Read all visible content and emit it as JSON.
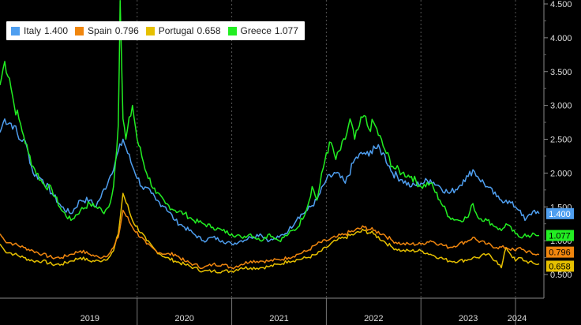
{
  "chart_data": {
    "type": "line",
    "xlabel": "",
    "ylabel": "",
    "x_ticks": [
      "2019",
      "2020",
      "2021",
      "2022",
      "2023",
      "2024"
    ],
    "ylim": [
      0.2,
      4.6
    ],
    "y_ticks": [
      "0.500",
      "1.000",
      "1.500",
      "2.000",
      "2.500",
      "3.000",
      "3.500",
      "4.000",
      "4.500"
    ],
    "y_tick_values": [
      0.5,
      1.0,
      1.5,
      2.0,
      2.5,
      3.0,
      3.5,
      4.0,
      4.5
    ],
    "grid": "vertical dashed",
    "legend": "top-left",
    "series": [
      {
        "name": "Italy",
        "last_label": "1.400",
        "color": "#4f9ff0",
        "x": [
          2018.55,
          2018.6,
          2018.7,
          2018.75,
          2018.8,
          2018.85,
          2018.9,
          2019.0,
          2019.1,
          2019.2,
          2019.3,
          2019.4,
          2019.5,
          2019.55,
          2019.6,
          2019.7,
          2019.85,
          2019.95,
          2020.05,
          2020.15,
          2020.2,
          2020.3,
          2020.4,
          2020.5,
          2020.6,
          2020.7,
          2020.8,
          2020.9,
          2021.0,
          2021.1,
          2021.2,
          2021.3,
          2021.4,
          2021.5,
          2021.6,
          2021.7,
          2021.8,
          2021.9,
          2022.0,
          2022.1,
          2022.2,
          2022.3,
          2022.4,
          2022.45,
          2022.5,
          2022.6,
          2022.7,
          2022.8,
          2022.9,
          2023.0,
          2023.1,
          2023.2,
          2023.3,
          2023.4,
          2023.45,
          2023.5,
          2023.55,
          2023.6,
          2023.7,
          2023.8,
          2023.85,
          2023.9,
          2024.0,
          2024.05,
          2024.1,
          2024.2,
          2024.25
        ],
        "y": [
          2.6,
          2.8,
          2.7,
          2.5,
          2.5,
          2.3,
          2.0,
          1.9,
          1.7,
          1.5,
          1.4,
          1.6,
          1.6,
          1.5,
          1.6,
          1.9,
          2.5,
          2.1,
          1.8,
          1.7,
          1.6,
          1.5,
          1.3,
          1.2,
          1.1,
          1.0,
          1.05,
          1.0,
          0.95,
          1.0,
          1.05,
          1.1,
          1.0,
          1.05,
          1.15,
          1.35,
          1.45,
          1.6,
          1.9,
          2.0,
          1.85,
          2.2,
          2.3,
          2.25,
          2.4,
          2.3,
          2.0,
          1.9,
          1.8,
          1.85,
          1.9,
          1.8,
          1.7,
          1.8,
          1.9,
          1.95,
          2.05,
          1.95,
          1.8,
          1.65,
          1.6,
          1.6,
          1.5,
          1.45,
          1.3,
          1.45,
          1.4
        ]
      },
      {
        "name": "Spain",
        "last_label": "0.796",
        "color": "#f0860e",
        "x": [
          2018.55,
          2018.6,
          2018.7,
          2018.8,
          2018.9,
          2019.0,
          2019.1,
          2019.2,
          2019.3,
          2019.4,
          2019.5,
          2019.6,
          2019.7,
          2019.75,
          2019.8,
          2019.85,
          2019.95,
          2020.1,
          2020.2,
          2020.3,
          2020.4,
          2020.5,
          2020.6,
          2020.7,
          2020.8,
          2020.9,
          2021.0,
          2021.1,
          2021.2,
          2021.3,
          2021.4,
          2021.5,
          2021.6,
          2021.7,
          2021.8,
          2021.9,
          2022.0,
          2022.1,
          2022.2,
          2022.3,
          2022.4,
          2022.5,
          2022.6,
          2022.7,
          2022.8,
          2022.9,
          2023.0,
          2023.1,
          2023.2,
          2023.3,
          2023.4,
          2023.5,
          2023.55,
          2023.6,
          2023.7,
          2023.8,
          2023.9,
          2024.0,
          2024.05,
          2024.1,
          2024.2,
          2024.25
        ],
        "y": [
          1.1,
          1.0,
          0.95,
          0.9,
          0.85,
          0.8,
          0.75,
          0.75,
          0.8,
          0.85,
          0.8,
          0.75,
          0.8,
          0.9,
          1.05,
          1.45,
          1.2,
          0.95,
          0.85,
          0.8,
          0.8,
          0.7,
          0.65,
          0.6,
          0.65,
          0.65,
          0.6,
          0.65,
          0.7,
          0.7,
          0.7,
          0.72,
          0.75,
          0.8,
          0.85,
          0.95,
          1.0,
          1.05,
          1.1,
          1.15,
          1.2,
          1.15,
          1.1,
          1.0,
          0.95,
          0.95,
          0.95,
          1.0,
          0.95,
          0.9,
          0.95,
          1.0,
          1.05,
          1.0,
          0.95,
          0.9,
          0.9,
          0.85,
          0.9,
          0.85,
          0.8,
          0.796
        ]
      },
      {
        "name": "Portugal",
        "last_label": "0.658",
        "color": "#e6c000",
        "x": [
          2018.55,
          2018.6,
          2018.7,
          2018.8,
          2018.9,
          2019.0,
          2019.1,
          2019.2,
          2019.3,
          2019.4,
          2019.5,
          2019.6,
          2019.7,
          2019.75,
          2019.8,
          2019.85,
          2019.95,
          2020.1,
          2020.2,
          2020.3,
          2020.4,
          2020.5,
          2020.6,
          2020.7,
          2020.8,
          2020.9,
          2021.0,
          2021.1,
          2021.2,
          2021.3,
          2021.4,
          2021.5,
          2021.6,
          2021.7,
          2021.8,
          2021.9,
          2022.0,
          2022.1,
          2022.2,
          2022.3,
          2022.4,
          2022.5,
          2022.6,
          2022.7,
          2022.8,
          2022.9,
          2023.0,
          2023.1,
          2023.2,
          2023.3,
          2023.4,
          2023.5,
          2023.55,
          2023.6,
          2023.7,
          2023.8,
          2023.85,
          2023.9,
          2024.0,
          2024.05,
          2024.1,
          2024.2,
          2024.25
        ],
        "y": [
          0.95,
          0.85,
          0.8,
          0.75,
          0.7,
          0.7,
          0.65,
          0.65,
          0.7,
          0.75,
          0.7,
          0.7,
          0.75,
          0.85,
          1.1,
          1.7,
          1.3,
          1.0,
          0.85,
          0.75,
          0.7,
          0.65,
          0.6,
          0.55,
          0.55,
          0.55,
          0.55,
          0.6,
          0.6,
          0.6,
          0.62,
          0.65,
          0.7,
          0.72,
          0.75,
          0.8,
          0.9,
          1.0,
          1.05,
          1.1,
          1.15,
          1.1,
          1.0,
          0.9,
          0.85,
          0.85,
          0.85,
          0.8,
          0.75,
          0.7,
          0.7,
          0.72,
          0.75,
          0.75,
          0.8,
          0.7,
          0.6,
          0.9,
          0.7,
          0.75,
          0.7,
          0.66,
          0.658
        ]
      },
      {
        "name": "Greece",
        "last_label": "1.077",
        "color": "#22ee22",
        "x": [
          2018.55,
          2018.6,
          2018.65,
          2018.7,
          2018.75,
          2018.8,
          2018.85,
          2018.9,
          2019.0,
          2019.1,
          2019.2,
          2019.3,
          2019.4,
          2019.5,
          2019.55,
          2019.6,
          2019.65,
          2019.7,
          2019.75,
          2019.8,
          2019.82,
          2019.85,
          2019.88,
          2019.95,
          2020.0,
          2020.1,
          2020.2,
          2020.3,
          2020.4,
          2020.5,
          2020.6,
          2020.7,
          2020.8,
          2020.9,
          2021.0,
          2021.1,
          2021.2,
          2021.3,
          2021.35,
          2021.4,
          2021.5,
          2021.6,
          2021.7,
          2021.8,
          2021.85,
          2021.9,
          2022.0,
          2022.05,
          2022.1,
          2022.2,
          2022.25,
          2022.3,
          2022.35,
          2022.4,
          2022.45,
          2022.5,
          2022.6,
          2022.7,
          2022.8,
          2022.9,
          2023.0,
          2023.1,
          2023.2,
          2023.3,
          2023.4,
          2023.5,
          2023.55,
          2023.6,
          2023.7,
          2023.8,
          2023.85,
          2023.9,
          2024.0,
          2024.05,
          2024.1,
          2024.15,
          2024.2,
          2024.25
        ],
        "y": [
          3.3,
          3.65,
          3.4,
          3.0,
          2.8,
          2.55,
          2.3,
          2.1,
          1.85,
          1.75,
          1.45,
          1.3,
          1.45,
          1.55,
          1.5,
          1.5,
          1.4,
          1.5,
          1.8,
          2.7,
          4.55,
          2.8,
          2.5,
          3.0,
          2.5,
          2.0,
          1.7,
          1.55,
          1.45,
          1.4,
          1.3,
          1.25,
          1.2,
          1.15,
          1.1,
          1.05,
          1.1,
          1.0,
          1.05,
          1.1,
          1.0,
          1.1,
          1.2,
          1.5,
          1.8,
          1.6,
          2.3,
          2.45,
          2.2,
          2.5,
          2.8,
          2.5,
          2.7,
          2.85,
          2.65,
          2.75,
          2.4,
          2.1,
          2.0,
          1.95,
          1.8,
          1.85,
          1.6,
          1.35,
          1.3,
          1.35,
          1.55,
          1.35,
          1.3,
          1.2,
          1.15,
          1.25,
          1.1,
          1.05,
          1.1,
          1.05,
          1.1,
          1.077
        ]
      }
    ],
    "x_range": [
      2018.55,
      2024.3
    ]
  }
}
